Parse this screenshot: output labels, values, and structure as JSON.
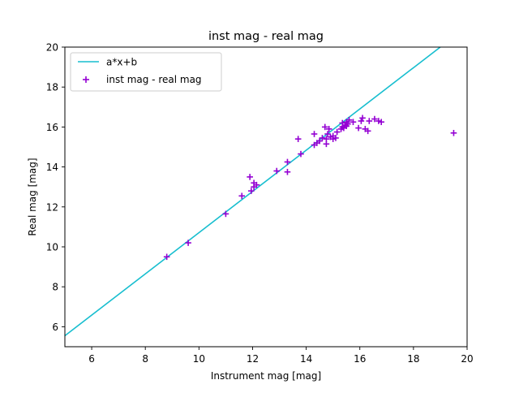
{
  "chart_data": {
    "type": "scatter",
    "title": "inst mag - real mag",
    "xlabel": "Instrument mag [mag]",
    "ylabel": "Real mag [mag]",
    "xlim": [
      5,
      20
    ],
    "ylim": [
      5,
      20
    ],
    "x_ticks": [
      "6",
      "8",
      "10",
      "12",
      "14",
      "16",
      "18",
      "20"
    ],
    "y_ticks": [
      "6",
      "8",
      "10",
      "12",
      "14",
      "16",
      "18",
      "20"
    ],
    "grid": false,
    "legend_position": "top-left",
    "series": [
      {
        "name": "a*x+b",
        "kind": "line",
        "color": "#17becf",
        "points": [
          [
            5.0,
            5.55
          ],
          [
            19.0,
            20.0
          ]
        ]
      },
      {
        "name": "inst mag - real mag",
        "kind": "scatter",
        "marker": "+",
        "color": "#9400d3",
        "points": [
          [
            8.8,
            9.5
          ],
          [
            9.6,
            10.2
          ],
          [
            11.0,
            11.65
          ],
          [
            11.6,
            12.55
          ],
          [
            11.9,
            13.5
          ],
          [
            11.95,
            12.8
          ],
          [
            12.05,
            13.0
          ],
          [
            12.05,
            13.2
          ],
          [
            12.15,
            13.1
          ],
          [
            12.9,
            13.8
          ],
          [
            13.3,
            14.25
          ],
          [
            13.3,
            13.75
          ],
          [
            13.7,
            15.4
          ],
          [
            13.8,
            14.65
          ],
          [
            14.3,
            15.65
          ],
          [
            14.3,
            15.1
          ],
          [
            14.4,
            15.2
          ],
          [
            14.5,
            15.3
          ],
          [
            14.6,
            15.45
          ],
          [
            14.7,
            16.0
          ],
          [
            14.75,
            15.15
          ],
          [
            14.75,
            15.4
          ],
          [
            14.8,
            15.65
          ],
          [
            14.85,
            15.9
          ],
          [
            14.9,
            15.5
          ],
          [
            15.0,
            15.55
          ],
          [
            15.0,
            15.4
          ],
          [
            15.1,
            15.45
          ],
          [
            15.15,
            15.75
          ],
          [
            15.3,
            15.9
          ],
          [
            15.35,
            16.0
          ],
          [
            15.35,
            16.2
          ],
          [
            15.4,
            15.95
          ],
          [
            15.45,
            16.1
          ],
          [
            15.5,
            16.05
          ],
          [
            15.5,
            16.25
          ],
          [
            15.55,
            16.15
          ],
          [
            15.6,
            16.35
          ],
          [
            15.75,
            16.25
          ],
          [
            15.95,
            15.95
          ],
          [
            16.05,
            16.3
          ],
          [
            16.1,
            16.45
          ],
          [
            16.2,
            15.9
          ],
          [
            16.3,
            15.8
          ],
          [
            16.35,
            16.3
          ],
          [
            16.55,
            16.4
          ],
          [
            16.7,
            16.3
          ],
          [
            16.8,
            16.25
          ],
          [
            19.5,
            15.7
          ]
        ]
      }
    ]
  }
}
